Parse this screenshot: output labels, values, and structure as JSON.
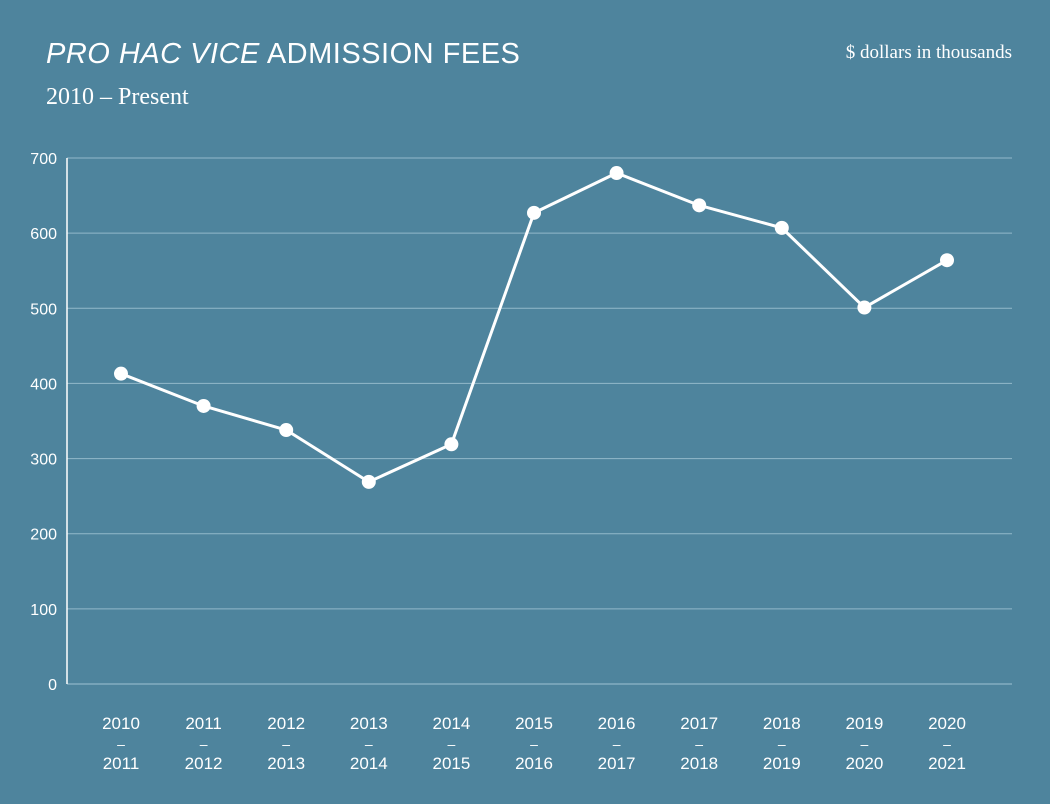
{
  "header": {
    "title_italic": "PRO HAC VICE",
    "title_rest": "ADMISSION FEES",
    "subtitle": "2010 – Present",
    "units": "$ dollars in thousands"
  },
  "colors": {
    "background": "#4e849d",
    "line": "#ffffff",
    "grid": "#9fc2d2"
  },
  "chart_data": {
    "type": "line",
    "title": "PRO HAC VICE ADMISSION FEES",
    "subtitle": "2010 – Present",
    "ylabel": "$ dollars in thousands",
    "xlabel": "",
    "categories": [
      [
        "2010",
        "–",
        "2011"
      ],
      [
        "2011",
        "–",
        "2012"
      ],
      [
        "2012",
        "–",
        "2013"
      ],
      [
        "2013",
        "–",
        "2014"
      ],
      [
        "2014",
        "–",
        "2015"
      ],
      [
        "2015",
        "–",
        "2016"
      ],
      [
        "2016",
        "–",
        "2017"
      ],
      [
        "2017",
        "–",
        "2018"
      ],
      [
        "2018",
        "–",
        "2019"
      ],
      [
        "2019",
        "–",
        "2020"
      ],
      [
        "2020",
        "–",
        "2021"
      ]
    ],
    "values": [
      413,
      370,
      338,
      269,
      319,
      627,
      680,
      637,
      607,
      501,
      564
    ],
    "ylim": [
      0,
      700
    ],
    "yticks": [
      0,
      100,
      200,
      300,
      400,
      500,
      600,
      700
    ],
    "grid": true,
    "legend": "none"
  }
}
